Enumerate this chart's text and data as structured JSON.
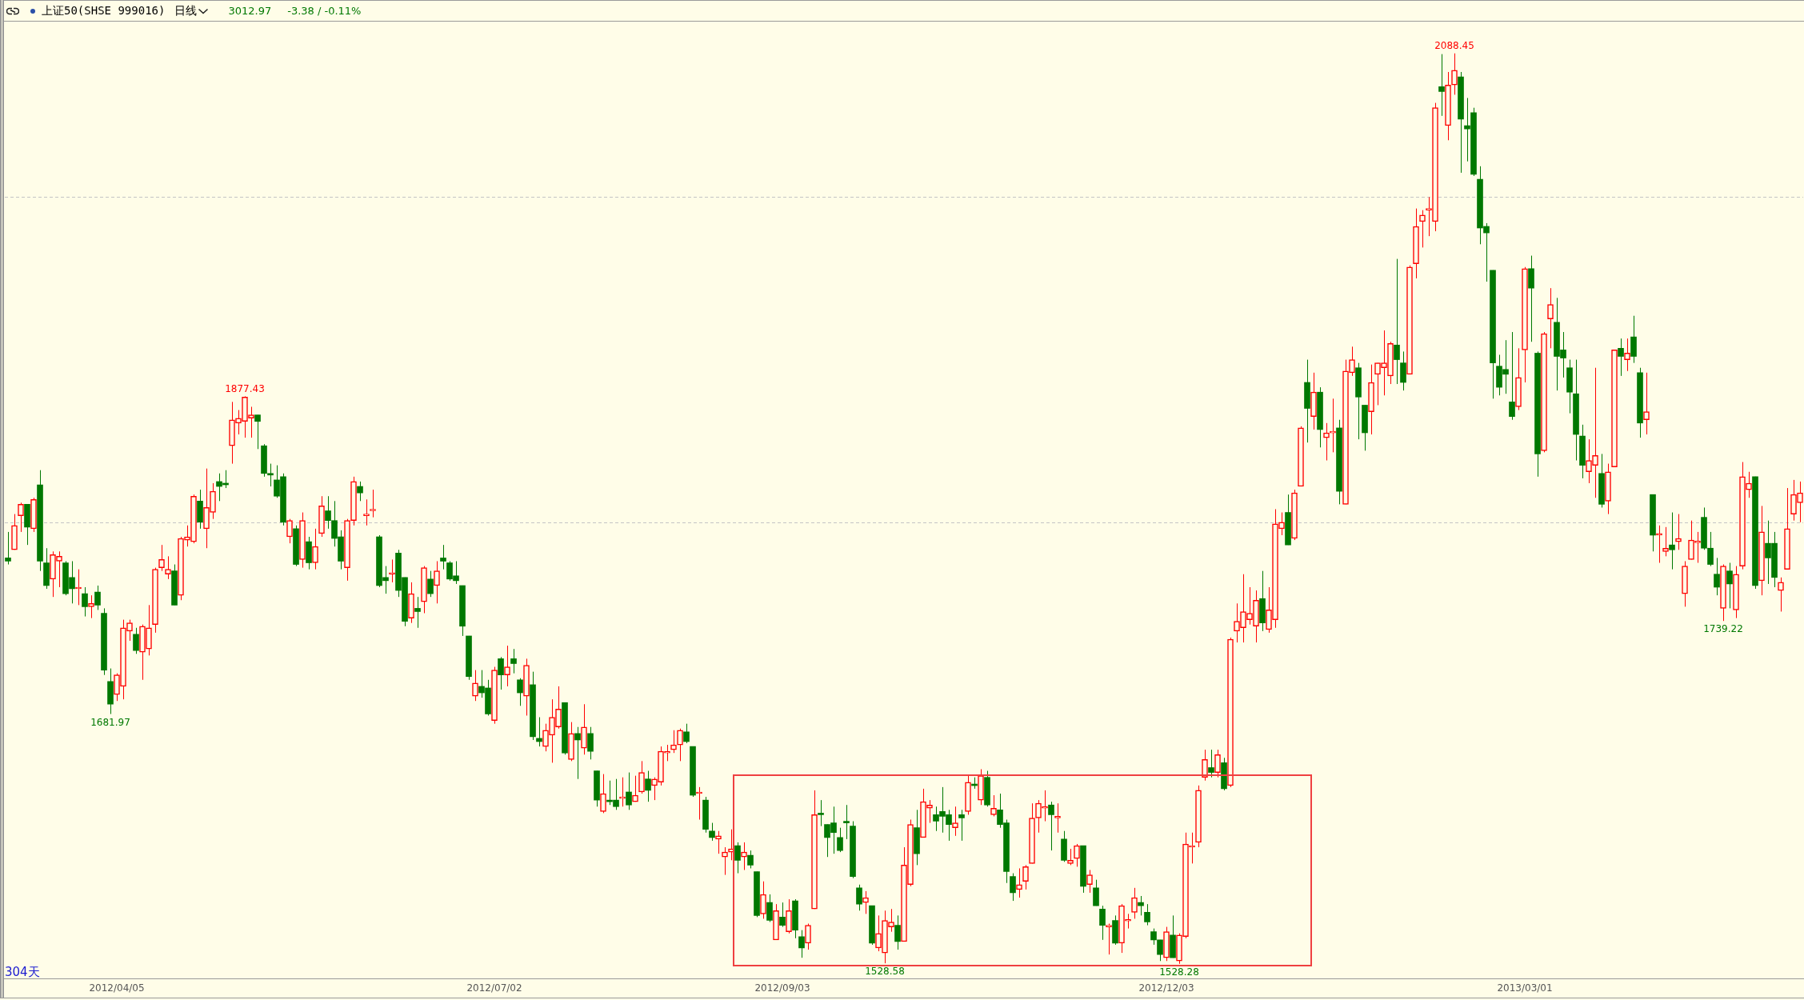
{
  "chart_data": {
    "type": "candlestick",
    "title": "上证50(SHSE 999016)",
    "subtitle": "日线",
    "categories": [
      null,
      null,
      null,
      null,
      null,
      null,
      null,
      null,
      null,
      null,
      null,
      null,
      null,
      null,
      null,
      null,
      null,
      "2012/04/05",
      null,
      null,
      null,
      null,
      null,
      null,
      null,
      null,
      null,
      null,
      null,
      null,
      null,
      null,
      null,
      null,
      null,
      null,
      null,
      null,
      null,
      null,
      null,
      null,
      null,
      null,
      null,
      null,
      null,
      null,
      null,
      null,
      null,
      null,
      null,
      null,
      null,
      null,
      null,
      null,
      null,
      null,
      null,
      null,
      null,
      null,
      null,
      null,
      null,
      null,
      null,
      null,
      null,
      null,
      null,
      null,
      null,
      null,
      "2012/07/02",
      null,
      null,
      null,
      null,
      null,
      null,
      null,
      null,
      null,
      null,
      null,
      null,
      null,
      null,
      null,
      null,
      null,
      null,
      null,
      null,
      null,
      null,
      null,
      null,
      null,
      null,
      null,
      null,
      null,
      null,
      null,
      null,
      null,
      null,
      null,
      null,
      null,
      null,
      null,
      null,
      null,
      null,
      null,
      null,
      "2012/09/03",
      null,
      null,
      null,
      null,
      null,
      null,
      null,
      null,
      null,
      null,
      null,
      null,
      null,
      null,
      null,
      null,
      null,
      null,
      null,
      null,
      null,
      null,
      null,
      null,
      null,
      null,
      null,
      null,
      null,
      null,
      null,
      null,
      null,
      null,
      null,
      null,
      null,
      null,
      null,
      null,
      null,
      null,
      null,
      null,
      null,
      null,
      null,
      null,
      null,
      null,
      null,
      null,
      null,
      null,
      null,
      null,
      null,
      null,
      null,
      "2012/12/03",
      null,
      null,
      null,
      null,
      null,
      null,
      null,
      null,
      null,
      null,
      null,
      null,
      null,
      null,
      null,
      null,
      null,
      null,
      null,
      null,
      null,
      null,
      null,
      null,
      null,
      null,
      null,
      null,
      null,
      null,
      null,
      null,
      null,
      null,
      null,
      null,
      null,
      null,
      null,
      null,
      null,
      null,
      null,
      null,
      null,
      null,
      null,
      null,
      null,
      null,
      null,
      null,
      null,
      null,
      null,
      "2013/03/01",
      null,
      null,
      null,
      null,
      null,
      null,
      null,
      null,
      null,
      null,
      null,
      null,
      null,
      null,
      null,
      null,
      null,
      null,
      null,
      null,
      null,
      null,
      null,
      null,
      null,
      null,
      null,
      null,
      null,
      null,
      null,
      null,
      null,
      null,
      null,
      null,
      null,
      null,
      null,
      null,
      null,
      null,
      null
    ],
    "ohlc": [
      [
        1778,
        1794,
        1774,
        1776
      ],
      [
        1783,
        1805,
        1783,
        1798
      ],
      [
        1804,
        1812,
        1794,
        1811
      ],
      [
        1811,
        1811,
        1786,
        1797
      ],
      [
        1796,
        1815,
        1794,
        1814
      ],
      [
        1823,
        1832,
        1770,
        1776
      ],
      [
        1775,
        1784,
        1759,
        1761
      ],
      [
        1765,
        1782,
        1754,
        1780
      ],
      [
        1776,
        1782,
        1760,
        1779
      ],
      [
        1775,
        1776,
        1755,
        1756
      ],
      [
        1766,
        1776,
        1750,
        1759
      ],
      [
        1759,
        1771,
        1749,
        1760
      ],
      [
        1756,
        1760,
        1742,
        1748
      ],
      [
        1748,
        1755,
        1741,
        1750
      ],
      [
        1757,
        1761,
        1746,
        1749
      ],
      [
        1744,
        1747,
        1706,
        1709
      ],
      [
        1702,
        1710,
        1681.97,
        1688
      ],
      [
        1694,
        1707,
        1690,
        1706
      ],
      [
        1699,
        1740,
        1691,
        1735
      ],
      [
        1733,
        1740,
        1727,
        1738
      ],
      [
        1731,
        1735,
        1719,
        1721
      ],
      [
        1720,
        1737,
        1703,
        1736
      ],
      [
        1722,
        1749,
        1718,
        1735
      ],
      [
        1737,
        1772,
        1732,
        1771
      ],
      [
        1772,
        1786,
        1770,
        1777
      ],
      [
        1768,
        1779,
        1765,
        1771
      ],
      [
        1770,
        1774,
        1749,
        1749
      ],
      [
        1755,
        1791,
        1752,
        1790
      ],
      [
        1789,
        1798,
        1785,
        1791
      ],
      [
        1788,
        1817,
        1787,
        1816
      ],
      [
        1813,
        1820,
        1796,
        1800
      ],
      [
        1796,
        1833,
        1784,
        1809
      ],
      [
        1806,
        1824,
        1802,
        1819
      ],
      [
        1825,
        1830,
        1813,
        1822
      ],
      [
        1824,
        1832,
        1821,
        1823
      ],
      [
        1847,
        1874,
        1836,
        1863
      ],
      [
        1861,
        1869,
        1854,
        1864
      ],
      [
        1862,
        1877.43,
        1852,
        1877
      ],
      [
        1864,
        1871,
        1852,
        1866
      ],
      [
        1866,
        1866,
        1845,
        1862
      ],
      [
        1847,
        1848,
        1828,
        1830
      ],
      [
        1830,
        1836,
        1822,
        1829
      ],
      [
        1826,
        1835,
        1815,
        1816
      ],
      [
        1828,
        1830,
        1798,
        1800
      ],
      [
        1791,
        1802,
        1787,
        1801
      ],
      [
        1796,
        1798,
        1773,
        1774
      ],
      [
        1777,
        1806,
        1772,
        1801
      ],
      [
        1788,
        1791,
        1771,
        1775
      ],
      [
        1775,
        1796,
        1771,
        1785
      ],
      [
        1793,
        1816,
        1791,
        1810
      ],
      [
        1807,
        1816,
        1796,
        1801
      ],
      [
        1801,
        1813,
        1785,
        1790
      ],
      [
        1791,
        1795,
        1771,
        1776
      ],
      [
        1772,
        1802,
        1764,
        1801
      ],
      [
        1801,
        1828,
        1798,
        1825
      ],
      [
        1822,
        1825,
        1813,
        1818
      ],
      [
        1804,
        1814,
        1798,
        1805
      ],
      [
        1807,
        1820,
        1803,
        1808
      ],
      [
        1791,
        1792,
        1760,
        1761
      ],
      [
        1766,
        1773,
        1756,
        1764
      ],
      [
        1768,
        1777,
        1763,
        1769
      ],
      [
        1781,
        1783,
        1754,
        1758
      ],
      [
        1766,
        1766,
        1736,
        1739
      ],
      [
        1741,
        1763,
        1738,
        1756
      ],
      [
        1747,
        1754,
        1735,
        1745
      ],
      [
        1751,
        1773,
        1744,
        1772
      ],
      [
        1765,
        1770,
        1754,
        1756
      ],
      [
        1761,
        1776,
        1750,
        1770
      ],
      [
        1778,
        1786,
        1771,
        1776
      ],
      [
        1775,
        1776,
        1764,
        1765
      ],
      [
        1767,
        1776,
        1762,
        1764
      ],
      [
        1761,
        1761,
        1730,
        1736
      ],
      [
        1730,
        1730,
        1703,
        1705
      ],
      [
        1693,
        1709,
        1690,
        1701
      ],
      [
        1699,
        1709,
        1692,
        1695
      ],
      [
        1698,
        1703,
        1681,
        1682
      ],
      [
        1678,
        1711,
        1676,
        1709
      ],
      [
        1716,
        1717,
        1697,
        1706
      ],
      [
        1706,
        1724,
        1699,
        1711
      ],
      [
        1716,
        1722,
        1707,
        1713
      ],
      [
        1703,
        1704,
        1687,
        1695
      ],
      [
        1693,
        1716,
        1681,
        1712
      ],
      [
        1700,
        1708,
        1666,
        1668
      ],
      [
        1667,
        1680,
        1662,
        1665
      ],
      [
        1662,
        1676,
        1659,
        1672
      ],
      [
        1669,
        1691,
        1652,
        1680
      ],
      [
        1674,
        1699,
        1673,
        1685
      ],
      [
        1689,
        1689,
        1657,
        1658
      ],
      [
        1654,
        1677,
        1653,
        1670
      ],
      [
        1670,
        1674,
        1642,
        1666
      ],
      [
        1661,
        1688,
        1657,
        1674
      ],
      [
        1670,
        1674,
        1654,
        1659
      ],
      [
        1647,
        1647,
        1625,
        1629
      ],
      [
        1622,
        1645,
        1621,
        1633
      ],
      [
        1629,
        1641,
        1626,
        1628
      ],
      [
        1629,
        1642,
        1623,
        1625
      ],
      [
        1630,
        1643,
        1625,
        1631
      ],
      [
        1634,
        1646,
        1623,
        1626
      ],
      [
        1628,
        1644,
        1628,
        1632
      ],
      [
        1634,
        1653,
        1633,
        1646
      ],
      [
        1642,
        1647,
        1628,
        1635
      ],
      [
        1638,
        1643,
        1629,
        1642
      ],
      [
        1640,
        1662,
        1638,
        1659
      ],
      [
        1658,
        1663,
        1653,
        1658
      ],
      [
        1660,
        1672,
        1658,
        1663
      ],
      [
        1663,
        1673,
        1653,
        1672
      ],
      [
        1671,
        1676,
        1664,
        1665
      ],
      [
        1662,
        1662,
        1631,
        1632
      ],
      [
        1633,
        1637,
        1617,
        1634
      ],
      [
        1629,
        1631,
        1609,
        1611
      ],
      [
        1610,
        1615,
        1604,
        1606
      ],
      [
        1605,
        1610,
        1596,
        1607
      ],
      [
        1594,
        1600,
        1583,
        1597
      ],
      [
        1597,
        1611,
        1592,
        1599
      ],
      [
        1601,
        1603,
        1584,
        1592
      ],
      [
        1594,
        1603,
        1586,
        1597
      ],
      [
        1595,
        1598,
        1587,
        1589
      ],
      [
        1585,
        1585,
        1557,
        1558
      ],
      [
        1559,
        1579,
        1556,
        1571
      ],
      [
        1566,
        1571,
        1554,
        1555
      ],
      [
        1543,
        1565,
        1543,
        1561
      ],
      [
        1557,
        1566,
        1551,
        1552
      ],
      [
        1548,
        1568,
        1547,
        1561
      ],
      [
        1567,
        1568,
        1544,
        1549
      ],
      [
        1545,
        1549,
        1532,
        1538
      ],
      [
        1541,
        1553,
        1537,
        1552
      ],
      [
        1562,
        1635,
        1562,
        1620
      ],
      [
        1621,
        1629,
        1613,
        1620
      ],
      [
        1614,
        1614,
        1594,
        1606
      ],
      [
        1615,
        1625,
        1596,
        1609
      ],
      [
        1606,
        1612,
        1597,
        1598
      ],
      [
        1616,
        1626,
        1605,
        1615
      ],
      [
        1613,
        1616,
        1581,
        1582
      ],
      [
        1575,
        1577,
        1561,
        1565
      ],
      [
        1566,
        1573,
        1559,
        1569
      ],
      [
        1564,
        1564,
        1540,
        1541
      ],
      [
        1538,
        1558,
        1536,
        1547
      ],
      [
        1535,
        1561,
        1528.58,
        1555
      ],
      [
        1551,
        1562,
        1548,
        1554
      ],
      [
        1552,
        1558,
        1537,
        1542
      ],
      [
        1542,
        1600,
        1542,
        1589
      ],
      [
        1577,
        1617,
        1576,
        1614
      ],
      [
        1612,
        1623,
        1589,
        1596
      ],
      [
        1606,
        1636,
        1606,
        1628
      ],
      [
        1624,
        1629,
        1615,
        1626
      ],
      [
        1620,
        1625,
        1610,
        1616
      ],
      [
        1622,
        1637,
        1609,
        1619
      ],
      [
        1620,
        1623,
        1604,
        1614
      ],
      [
        1612,
        1625,
        1607,
        1615
      ],
      [
        1620,
        1623,
        1604,
        1618
      ],
      [
        1622,
        1644,
        1620,
        1640
      ],
      [
        1638.3,
        1643,
        1636,
        1637.9
      ],
      [
        1629,
        1648,
        1626,
        1644
      ],
      [
        1643,
        1647,
        1625,
        1626
      ],
      [
        1620,
        1632,
        1619,
        1624
      ],
      [
        1623,
        1633,
        1612,
        1614
      ],
      [
        1615,
        1617,
        1578,
        1585
      ],
      [
        1582,
        1584,
        1567,
        1572
      ],
      [
        1574,
        1587,
        1569,
        1577
      ],
      [
        1579,
        1589,
        1574,
        1588
      ],
      [
        1590,
        1627,
        1590,
        1618
      ],
      [
        1618,
        1629,
        1609,
        1627
      ],
      [
        1624,
        1635,
        1616,
        1625
      ],
      [
        1626,
        1628,
        1598,
        1620
      ],
      [
        1618,
        1627,
        1609,
        1619
      ],
      [
        1605,
        1610,
        1591,
        1592
      ],
      [
        1590,
        1599,
        1589,
        1592
      ],
      [
        1593,
        1602,
        1588,
        1601
      ],
      [
        1601,
        1601,
        1572,
        1576
      ],
      [
        1577,
        1586,
        1572,
        1583
      ],
      [
        1575,
        1580,
        1564,
        1564
      ],
      [
        1562,
        1564,
        1543,
        1552
      ],
      [
        1551,
        1553,
        1534,
        1552
      ],
      [
        1555,
        1558,
        1540,
        1541
      ],
      [
        1541,
        1565,
        1535,
        1564
      ],
      [
        1554.6,
        1559,
        1550,
        1555.2
      ],
      [
        1560,
        1575,
        1556,
        1569
      ],
      [
        1566,
        1570,
        1558,
        1564
      ],
      [
        1560,
        1565,
        1552,
        1554
      ],
      [
        1548,
        1550,
        1540,
        1543
      ],
      [
        1543,
        1543,
        1530,
        1534
      ],
      [
        1532,
        1551,
        1530,
        1548
      ],
      [
        1546,
        1558,
        1532,
        1532
      ],
      [
        1530,
        1547,
        1528.28,
        1546
      ],
      [
        1545,
        1609,
        1544,
        1602
      ],
      [
        1600,
        1609,
        1590,
        1601
      ],
      [
        1603,
        1638,
        1600,
        1635
      ],
      [
        1643,
        1660,
        1641,
        1654
      ],
      [
        1649,
        1660,
        1643,
        1646
      ],
      [
        1646,
        1660,
        1643,
        1657
      ],
      [
        1652,
        1655,
        1635,
        1636
      ],
      [
        1638,
        1729,
        1637,
        1728
      ],
      [
        1733,
        1750,
        1726,
        1739
      ],
      [
        1735,
        1768,
        1726,
        1745
      ],
      [
        1740,
        1760,
        1737,
        1744
      ],
      [
        1736,
        1758,
        1726,
        1752
      ],
      [
        1753,
        1770,
        1733,
        1738
      ],
      [
        1734,
        1760,
        1732,
        1746
      ],
      [
        1740,
        1808,
        1735,
        1799
      ],
      [
        1796,
        1806,
        1792,
        1800
      ],
      [
        1806,
        1817,
        1786,
        1786
      ],
      [
        1790,
        1820,
        1789,
        1818
      ],
      [
        1822,
        1859,
        1822,
        1858
      ],
      [
        1886,
        1900,
        1849,
        1870
      ],
      [
        1865,
        1892,
        1857,
        1880
      ],
      [
        1880,
        1883,
        1846,
        1857
      ],
      [
        1852,
        1861,
        1838,
        1855
      ],
      [
        1854.9,
        1876,
        1843,
        1855.4
      ],
      [
        1858,
        1863,
        1811,
        1819
      ],
      [
        1811,
        1900,
        1811,
        1893
      ],
      [
        1892,
        1908,
        1890,
        1900
      ],
      [
        1895,
        1898,
        1851,
        1877
      ],
      [
        1872,
        1872,
        1844,
        1855
      ],
      [
        1868,
        1897,
        1854,
        1886
      ],
      [
        1891,
        1898,
        1872,
        1898
      ],
      [
        1895,
        1918,
        1878,
        1898
      ],
      [
        1890,
        1911,
        1885,
        1910
      ],
      [
        1909,
        1962,
        1885,
        1900
      ],
      [
        1898,
        1905,
        1881,
        1886
      ],
      [
        1891,
        1958,
        1891,
        1957
      ],
      [
        1959,
        1993,
        1950,
        1982
      ],
      [
        1985,
        1992,
        1969,
        1989
      ],
      [
        1992,
        2000,
        1976,
        1993
      ],
      [
        1985,
        2058,
        1979,
        2055
      ],
      [
        2068,
        2088,
        2050,
        2065
      ],
      [
        2044,
        2077,
        2035,
        2069
      ],
      [
        2069,
        2088.45,
        2063,
        2078
      ],
      [
        2074,
        2077,
        2015,
        2048
      ],
      [
        2044,
        2061,
        2022,
        2042
      ],
      [
        2052,
        2055,
        2013,
        2014
      ],
      [
        2011,
        2019,
        1971,
        1981
      ],
      [
        1982,
        1984,
        1948,
        1978
      ],
      [
        1955,
        1955,
        1876,
        1898
      ],
      [
        1896,
        1903,
        1878,
        1883
      ],
      [
        1894,
        1912,
        1879,
        1891
      ],
      [
        1874,
        1917,
        1863,
        1865
      ],
      [
        1871,
        1907,
        1869,
        1889
      ],
      [
        1906,
        1957,
        1886,
        1956
      ],
      [
        1956,
        1964,
        1911,
        1944
      ],
      [
        1904,
        1905,
        1828,
        1842
      ],
      [
        1844,
        1917,
        1843,
        1916
      ],
      [
        1925,
        1944,
        1907,
        1934
      ],
      [
        1923,
        1938,
        1881,
        1902
      ],
      [
        1906,
        1917,
        1889,
        1901
      ],
      [
        1895,
        1900,
        1867,
        1880
      ],
      [
        1879,
        1900,
        1838,
        1854
      ],
      [
        1853,
        1860,
        1827,
        1835
      ],
      [
        1831,
        1851,
        1824,
        1838
      ],
      [
        1835,
        1895,
        1815,
        1841
      ],
      [
        1830,
        1842,
        1809,
        1811
      ],
      [
        1813,
        1836,
        1805,
        1831
      ],
      [
        1834,
        1906,
        1834,
        1906
      ],
      [
        1907,
        1913,
        1890,
        1902
      ],
      [
        1900,
        1913,
        1893,
        1904
      ],
      [
        1914,
        1927,
        1898,
        1902
      ],
      [
        1892,
        1895,
        1852,
        1861
      ],
      [
        1863,
        1892,
        1854,
        1868
      ],
      [
        1817,
        1817,
        1782,
        1792
      ],
      [
        1792,
        1798,
        1775,
        1793
      ],
      [
        1782,
        1797,
        1779,
        1784
      ],
      [
        1786,
        1806,
        1771,
        1783
      ],
      [
        1788,
        1805,
        1783,
        1790
      ],
      [
        1756,
        1776,
        1748,
        1773
      ],
      [
        1777,
        1801,
        1777,
        1789
      ],
      [
        1787.4,
        1794,
        1775,
        1787.9
      ],
      [
        1803,
        1809,
        1783,
        1784
      ],
      [
        1784,
        1794,
        1773,
        1774
      ],
      [
        1768,
        1778,
        1755,
        1760
      ],
      [
        1747,
        1774,
        1739.22,
        1773
      ],
      [
        1770,
        1775,
        1747,
        1762
      ],
      [
        1746,
        1773,
        1741,
        1768
      ],
      [
        1773,
        1837,
        1771,
        1828
      ],
      [
        1820,
        1831,
        1815,
        1824
      ],
      [
        1828,
        1828,
        1759,
        1761
      ],
      [
        1764,
        1810,
        1755,
        1794
      ],
      [
        1787,
        1801,
        1762,
        1778
      ],
      [
        1787,
        1794,
        1760,
        1766
      ],
      [
        1758,
        1766,
        1745,
        1763
      ],
      [
        1771,
        1821,
        1771,
        1796
      ],
      [
        1805,
        1826,
        1801,
        1817
      ],
      [
        1812,
        1825,
        1800,
        1818
      ]
    ],
    "colors": [
      "#007800",
      "#ff0000",
      "#ff0000",
      "#007800",
      "#ff0000",
      "#007800",
      "#007800",
      "#ff0000",
      "#ff0000",
      "#007800",
      "#007800",
      "#ff0000",
      "#007800",
      "#ff0000",
      "#007800",
      "#007800",
      "#007800",
      "#ff0000",
      "#ff0000",
      "#ff0000",
      "#007800",
      "#ff0000",
      "#ff0000",
      "#ff0000",
      "#ff0000",
      "#ff0000",
      "#007800",
      "#ff0000",
      "#ff0000",
      "#ff0000",
      "#007800",
      "#ff0000",
      "#ff0000",
      "#007800",
      "#007800",
      "#ff0000",
      "#ff0000",
      "#ff0000",
      "#ff0000",
      "#007800",
      "#007800",
      "#007800",
      "#007800",
      "#007800",
      "#ff0000",
      "#007800",
      "#ff0000",
      "#007800",
      "#ff0000",
      "#ff0000",
      "#007800",
      "#007800",
      "#007800",
      "#ff0000",
      "#ff0000",
      "#007800",
      "#ff0000",
      "#ff0000",
      "#007800",
      "#007800",
      "#ff0000",
      "#007800",
      "#007800",
      "#ff0000",
      "#007800",
      "#ff0000",
      "#007800",
      "#ff0000",
      "#007800",
      "#007800",
      "#007800",
      "#007800",
      "#007800",
      "#ff0000",
      "#007800",
      "#007800",
      "#ff0000",
      "#007800",
      "#ff0000",
      "#007800",
      "#007800",
      "#ff0000",
      "#007800",
      "#007800",
      "#ff0000",
      "#ff0000",
      "#ff0000",
      "#007800",
      "#ff0000",
      "#007800",
      "#ff0000",
      "#007800",
      "#007800",
      "#ff0000",
      "#007800",
      "#007800",
      "#ff0000",
      "#007800",
      "#ff0000",
      "#ff0000",
      "#007800",
      "#ff0000",
      "#ff0000",
      "#ff0000",
      "#ff0000",
      "#ff0000",
      "#007800",
      "#007800",
      "#ff0000",
      "#007800",
      "#007800",
      "#ff0000",
      "#ff0000",
      "#ff0000",
      "#007800",
      "#ff0000",
      "#007800",
      "#007800",
      "#ff0000",
      "#007800",
      "#ff0000",
      "#007800",
      "#ff0000",
      "#007800",
      "#007800",
      "#ff0000",
      "#ff0000",
      "#007800",
      "#007800",
      "#007800",
      "#007800",
      "#007800",
      "#007800",
      "#007800",
      "#ff0000",
      "#007800",
      "#ff0000",
      "#ff0000",
      "#ff0000",
      "#007800",
      "#ff0000",
      "#ff0000",
      "#007800",
      "#ff0000",
      "#ff0000",
      "#007800",
      "#007800",
      "#007800",
      "#ff0000",
      "#007800",
      "#ff0000",
      "#007800",
      "#ff0000",
      "#007800",
      "#ff0000",
      "#007800",
      "#007800",
      "#007800",
      "#ff0000",
      "#ff0000",
      "#ff0000",
      "#ff0000",
      "#ff0000",
      "#007800",
      "#ff0000",
      "#007800",
      "#ff0000",
      "#ff0000",
      "#007800",
      "#ff0000",
      "#007800",
      "#007800",
      "#ff0000",
      "#007800",
      "#ff0000",
      "#ff0000",
      "#ff0000",
      "#007800",
      "#007800",
      "#007800",
      "#007800",
      "#ff0000",
      "#007800",
      "#ff0000",
      "#ff0000",
      "#ff0000",
      "#ff0000",
      "#ff0000",
      "#007800",
      "#ff0000",
      "#007800",
      "#ff0000",
      "#ff0000",
      "#ff0000",
      "#ff0000",
      "#ff0000",
      "#007800",
      "#ff0000",
      "#ff0000",
      "#ff0000",
      "#007800",
      "#ff0000",
      "#ff0000",
      "#007800",
      "#ff0000",
      "#007800",
      "#ff0000",
      "#ff0000",
      "#007800",
      "#ff0000",
      "#ff0000",
      "#007800",
      "#007800",
      "#ff0000",
      "#ff0000",
      "#ff0000",
      "#ff0000",
      "#007800",
      "#007800",
      "#ff0000",
      "#ff0000",
      "#ff0000",
      "#ff0000",
      "#ff0000",
      "#007800",
      "#ff0000",
      "#ff0000",
      "#007800",
      "#007800",
      "#007800",
      "#007800",
      "#007800",
      "#007800",
      "#007800",
      "#007800",
      "#007800",
      "#ff0000",
      "#ff0000",
      "#007800",
      "#007800",
      "#ff0000",
      "#ff0000",
      "#007800",
      "#007800",
      "#007800",
      "#007800",
      "#007800",
      "#ff0000",
      "#ff0000",
      "#007800",
      "#ff0000",
      "#ff0000",
      "#007800",
      "#ff0000",
      "#007800",
      "#007800",
      "#ff0000",
      "#007800",
      "#ff0000",
      "#ff0000",
      "#007800",
      "#ff0000",
      "#ff0000",
      "#ff0000",
      "#ff0000",
      "#007800",
      "#007800",
      "#007800",
      "#ff0000",
      "#007800",
      "#ff0000",
      "#ff0000",
      "#ff0000",
      "#007800",
      "#ff0000",
      "#007800",
      "#007800",
      "#ff0000",
      "#ff0000",
      "#ff0000",
      "#ff0000"
    ],
    "ylim": [
      1519,
      2108
    ],
    "tick_labels": "x",
    "ref_lines": [
      {
        "axis": "y",
        "value": 2000,
        "color": "#c4c4c4",
        "line_style": "dashed"
      },
      {
        "axis": "y",
        "value": 1800,
        "color": "#c4c4c4",
        "line_style": "dashed"
      }
    ],
    "annotations": [
      "3012.97",
      "-3.38 / -0.11%",
      "304天",
      {
        "text": "1877.43",
        "y": 1877.43
      },
      {
        "text": "1681.97",
        "y": 1681.97
      },
      {
        "text": "1528.58",
        "y": 1528.58
      },
      {
        "text": "1528.28",
        "y": 1528.28
      },
      {
        "text": "2088.45",
        "y": 2088.45
      },
      {
        "text": "1739.22",
        "y": 1739.22
      }
    ]
  }
}
